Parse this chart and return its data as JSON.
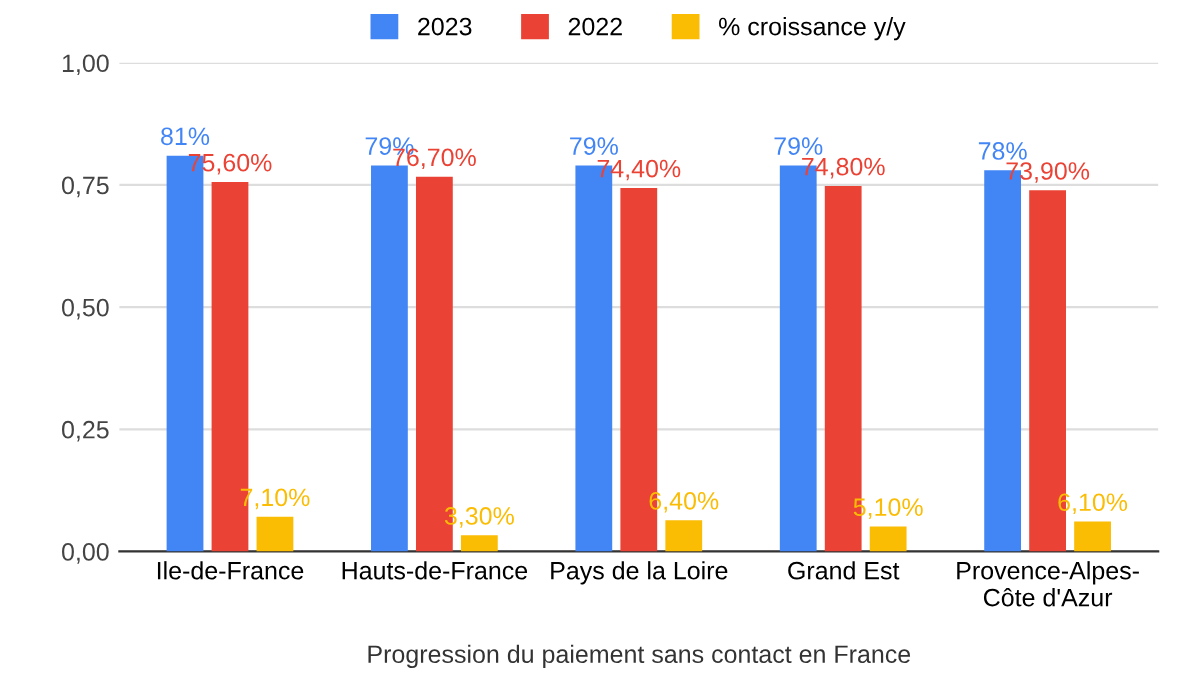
{
  "chart_data": {
    "type": "bar",
    "xlabel": "Progression du paiement sans contact en France",
    "categories": [
      "Ile-de-France",
      "Hauts-de-France",
      "Pays de la Loire",
      "Grand Est",
      "Provence-Alpes-\nCôte d'Azur"
    ],
    "series": [
      {
        "name": "2023",
        "color": "#4285f4",
        "values": [
          0.81,
          0.79,
          0.79,
          0.79,
          0.78
        ],
        "value_labels": [
          "81%",
          "79%",
          "79%",
          "79%",
          "78%"
        ]
      },
      {
        "name": "2022",
        "color": "#ea4335",
        "values": [
          0.756,
          0.767,
          0.744,
          0.748,
          0.739
        ],
        "value_labels": [
          "75,60%",
          "76,70%",
          "74,40%",
          "74,80%",
          "73,90%"
        ]
      },
      {
        "name": "% croissance y/y",
        "color": "#fbbc04",
        "values": [
          0.071,
          0.033,
          0.064,
          0.051,
          0.061
        ],
        "value_labels": [
          "7,10%",
          "3,30%",
          "6,40%",
          "5,10%",
          "6,10%"
        ]
      }
    ],
    "ylim": [
      0,
      1
    ],
    "yticks": [
      {
        "value": 0,
        "label": "0,00"
      },
      {
        "value": 0.25,
        "label": "0,25"
      },
      {
        "value": 0.5,
        "label": "0,50"
      },
      {
        "value": 0.75,
        "label": "0,75"
      },
      {
        "value": 1,
        "label": "1,00"
      }
    ],
    "grid": "y",
    "legend": "top"
  }
}
